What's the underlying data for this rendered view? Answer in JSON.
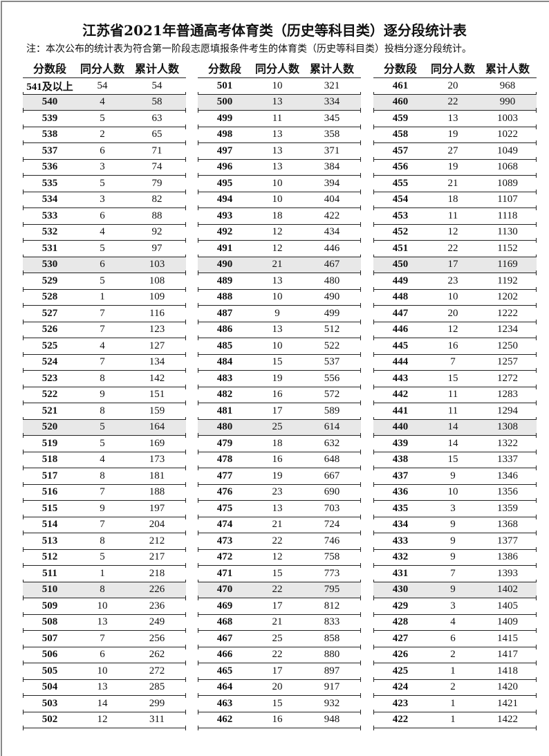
{
  "title": "江苏省2021年普通高考体育类（历史等科目类）逐分段统计表",
  "note": "注：本次公布的统计表为符合第一阶段志愿填报条件考生的体育类（历史等科目类）投档分逐分段统计。",
  "headers": [
    "分数段",
    "同分人数",
    "累计人数"
  ],
  "highlight_color": "#e8e8e8",
  "columns": [
    [
      [
        "541及以上",
        54,
        54
      ],
      [
        "540",
        4,
        58
      ],
      [
        "539",
        5,
        63
      ],
      [
        "538",
        2,
        65
      ],
      [
        "537",
        6,
        71
      ],
      [
        "536",
        3,
        74
      ],
      [
        "535",
        5,
        79
      ],
      [
        "534",
        3,
        82
      ],
      [
        "533",
        6,
        88
      ],
      [
        "532",
        4,
        92
      ],
      [
        "531",
        5,
        97
      ],
      [
        "530",
        6,
        103
      ],
      [
        "529",
        5,
        108
      ],
      [
        "528",
        1,
        109
      ],
      [
        "527",
        7,
        116
      ],
      [
        "526",
        7,
        123
      ],
      [
        "525",
        4,
        127
      ],
      [
        "524",
        7,
        134
      ],
      [
        "523",
        8,
        142
      ],
      [
        "522",
        9,
        151
      ],
      [
        "521",
        8,
        159
      ],
      [
        "520",
        5,
        164
      ],
      [
        "519",
        5,
        169
      ],
      [
        "518",
        4,
        173
      ],
      [
        "517",
        8,
        181
      ],
      [
        "516",
        7,
        188
      ],
      [
        "515",
        9,
        197
      ],
      [
        "514",
        7,
        204
      ],
      [
        "513",
        8,
        212
      ],
      [
        "512",
        5,
        217
      ],
      [
        "511",
        1,
        218
      ],
      [
        "510",
        8,
        226
      ],
      [
        "509",
        10,
        236
      ],
      [
        "508",
        13,
        249
      ],
      [
        "507",
        7,
        256
      ],
      [
        "506",
        6,
        262
      ],
      [
        "505",
        10,
        272
      ],
      [
        "504",
        13,
        285
      ],
      [
        "503",
        14,
        299
      ],
      [
        "502",
        12,
        311
      ]
    ],
    [
      [
        "501",
        10,
        321
      ],
      [
        "500",
        13,
        334
      ],
      [
        "499",
        11,
        345
      ],
      [
        "498",
        13,
        358
      ],
      [
        "497",
        13,
        371
      ],
      [
        "496",
        13,
        384
      ],
      [
        "495",
        10,
        394
      ],
      [
        "494",
        10,
        404
      ],
      [
        "493",
        18,
        422
      ],
      [
        "492",
        12,
        434
      ],
      [
        "491",
        12,
        446
      ],
      [
        "490",
        21,
        467
      ],
      [
        "489",
        13,
        480
      ],
      [
        "488",
        10,
        490
      ],
      [
        "487",
        9,
        499
      ],
      [
        "486",
        13,
        512
      ],
      [
        "485",
        10,
        522
      ],
      [
        "484",
        15,
        537
      ],
      [
        "483",
        19,
        556
      ],
      [
        "482",
        16,
        572
      ],
      [
        "481",
        17,
        589
      ],
      [
        "480",
        25,
        614
      ],
      [
        "479",
        18,
        632
      ],
      [
        "478",
        16,
        648
      ],
      [
        "477",
        19,
        667
      ],
      [
        "476",
        23,
        690
      ],
      [
        "475",
        13,
        703
      ],
      [
        "474",
        21,
        724
      ],
      [
        "473",
        22,
        746
      ],
      [
        "472",
        12,
        758
      ],
      [
        "471",
        15,
        773
      ],
      [
        "470",
        22,
        795
      ],
      [
        "469",
        17,
        812
      ],
      [
        "468",
        21,
        833
      ],
      [
        "467",
        25,
        858
      ],
      [
        "466",
        22,
        880
      ],
      [
        "465",
        17,
        897
      ],
      [
        "464",
        20,
        917
      ],
      [
        "463",
        15,
        932
      ],
      [
        "462",
        16,
        948
      ]
    ],
    [
      [
        "461",
        20,
        968
      ],
      [
        "460",
        22,
        990
      ],
      [
        "459",
        13,
        1003
      ],
      [
        "458",
        19,
        1022
      ],
      [
        "457",
        27,
        1049
      ],
      [
        "456",
        19,
        1068
      ],
      [
        "455",
        21,
        1089
      ],
      [
        "454",
        18,
        1107
      ],
      [
        "453",
        11,
        1118
      ],
      [
        "452",
        12,
        1130
      ],
      [
        "451",
        22,
        1152
      ],
      [
        "450",
        17,
        1169
      ],
      [
        "449",
        23,
        1192
      ],
      [
        "448",
        10,
        1202
      ],
      [
        "447",
        20,
        1222
      ],
      [
        "446",
        12,
        1234
      ],
      [
        "445",
        16,
        1250
      ],
      [
        "444",
        7,
        1257
      ],
      [
        "443",
        15,
        1272
      ],
      [
        "442",
        11,
        1283
      ],
      [
        "441",
        11,
        1294
      ],
      [
        "440",
        14,
        1308
      ],
      [
        "439",
        14,
        1322
      ],
      [
        "438",
        15,
        1337
      ],
      [
        "437",
        9,
        1346
      ],
      [
        "436",
        10,
        1356
      ],
      [
        "435",
        3,
        1359
      ],
      [
        "434",
        9,
        1368
      ],
      [
        "433",
        9,
        1377
      ],
      [
        "432",
        9,
        1386
      ],
      [
        "431",
        7,
        1393
      ],
      [
        "430",
        9,
        1402
      ],
      [
        "429",
        3,
        1405
      ],
      [
        "428",
        4,
        1409
      ],
      [
        "427",
        6,
        1415
      ],
      [
        "426",
        2,
        1417
      ],
      [
        "425",
        1,
        1418
      ],
      [
        "424",
        2,
        1420
      ],
      [
        "423",
        1,
        1421
      ],
      [
        "422",
        1,
        1422
      ]
    ]
  ],
  "highlighted_scores": [
    "540",
    "530",
    "520",
    "510",
    "500",
    "490",
    "480",
    "470",
    "460",
    "450",
    "440",
    "430"
  ]
}
